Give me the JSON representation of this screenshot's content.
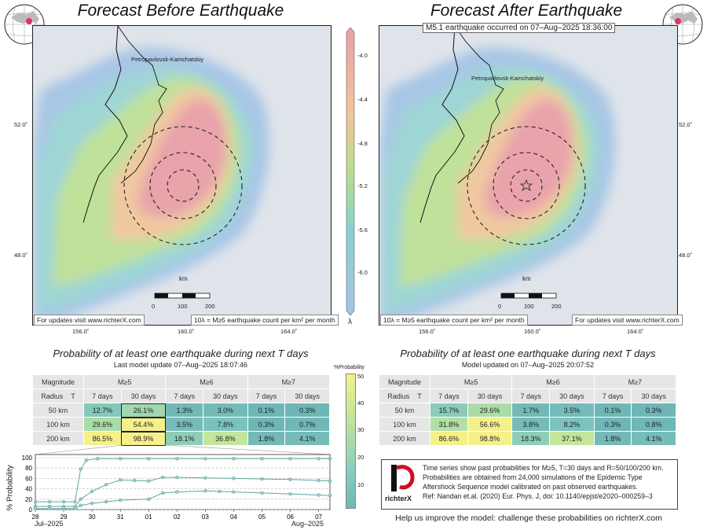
{
  "left": {
    "title": "Forecast Before Earthquake",
    "city": "Petropavlovsk-Kamchatskiy",
    "updates_note": "For updates visit www.richterX.com",
    "legend_note": "10λ = M≥5 earthquake count per km² per month",
    "subtitle": "Probability of at least one earthquake during next T days",
    "update_text": "Last model update 07–Aug–2025 18:07:46"
  },
  "right": {
    "title": "Forecast After Earthquake",
    "event_note": "M5.1 earthquake occurred on 07–Aug–2025 18:36:00",
    "city": "Petropavlovsk-Kamchatskiy",
    "updates_note": "For updates visit www.richterX.com",
    "legend_note": "10λ = M≥5 earthquake count per km² per month",
    "subtitle": "Probability of at least one earthquake during next T days",
    "update_text": "Model updated on 07–Aug–2025 20:07:52"
  },
  "map_axes": {
    "lon_ticks": [
      "156.0˚",
      "160.0˚",
      "164.0˚"
    ],
    "lat_ticks": [
      "52.0˚",
      "48.0˚"
    ],
    "scale_unit": "km",
    "scale_ticks": [
      "0",
      "100",
      "200"
    ]
  },
  "colorbar": {
    "ticks": [
      "-4.0",
      "-4.4",
      "-4.8",
      "-5.2",
      "-5.6",
      "-6.0"
    ],
    "label": "λ",
    "colors": [
      "#e8a0a8",
      "#f2c49a",
      "#b8dd8e",
      "#8ad0cf",
      "#a6c4e6"
    ]
  },
  "prob_colorbar": {
    "label": "%Probability",
    "ticks": [
      "50",
      "40",
      "30",
      "20",
      "10"
    ]
  },
  "table_headers": {
    "magnitude": "Magnitude",
    "radius": "Radius",
    "t": "T",
    "mags": [
      "M≥5",
      "M≥6",
      "M≥7"
    ],
    "periods": [
      "7 days",
      "30 days",
      "7 days",
      "30 days",
      "7 days",
      "30 days"
    ]
  },
  "table_left": {
    "rows": [
      {
        "radius": "50 km",
        "cells": [
          "12.7%",
          "26.1%",
          "1.3%",
          "3.0%",
          "0.1%",
          "0.3%"
        ]
      },
      {
        "radius": "100 km",
        "cells": [
          "29.6%",
          "54.4%",
          "3.5%",
          "7.8%",
          "0.3%",
          "0.7%"
        ]
      },
      {
        "radius": "200 km",
        "cells": [
          "86.5%",
          "98.9%",
          "18.1%",
          "36.8%",
          "1.8%",
          "4.1%"
        ]
      }
    ]
  },
  "table_right": {
    "rows": [
      {
        "radius": "50 km",
        "cells": [
          "15.7%",
          "29.6%",
          "1.7%",
          "3.5%",
          "0.1%",
          "0.3%"
        ]
      },
      {
        "radius": "100 km",
        "cells": [
          "31.8%",
          "56.6%",
          "3.8%",
          "8.2%",
          "0.3%",
          "0.8%"
        ]
      },
      {
        "radius": "200 km",
        "cells": [
          "86.6%",
          "98.8%",
          "18.3%",
          "37.1%",
          "1.8%",
          "4.1%"
        ]
      }
    ]
  },
  "chart_data": {
    "type": "line",
    "ylabel": "% Probability",
    "ylim": [
      0,
      100
    ],
    "yticks": [
      "100",
      "80",
      "60",
      "40",
      "20",
      "0"
    ],
    "xlim": [
      28.0,
      38.4
    ],
    "xticks": [
      {
        "x": 28,
        "label": "28"
      },
      {
        "x": 29,
        "label": "29"
      },
      {
        "x": 30,
        "label": "30"
      },
      {
        "x": 31,
        "label": "31"
      },
      {
        "x": 32,
        "label": "01"
      },
      {
        "x": 33,
        "label": "02"
      },
      {
        "x": 34,
        "label": "03"
      },
      {
        "x": 35,
        "label": "04"
      },
      {
        "x": 36,
        "label": "05"
      },
      {
        "x": 37,
        "label": "06"
      },
      {
        "x": 38,
        "label": "07"
      }
    ],
    "month_labels": [
      "Jul–2025",
      "Aug–2025"
    ],
    "series": [
      {
        "radius": "200 km",
        "points": [
          [
            28,
            15
          ],
          [
            28.5,
            15
          ],
          [
            29,
            15
          ],
          [
            29.4,
            15
          ],
          [
            29.6,
            78
          ],
          [
            29.8,
            95
          ],
          [
            30.2,
            98
          ],
          [
            31,
            98
          ],
          [
            32,
            98
          ],
          [
            33,
            98
          ],
          [
            34,
            98
          ],
          [
            35,
            98
          ],
          [
            36,
            98
          ],
          [
            37,
            98
          ],
          [
            38,
            98
          ],
          [
            38.4,
            98
          ]
        ]
      },
      {
        "radius": "100 km",
        "points": [
          [
            28,
            6
          ],
          [
            28.5,
            6
          ],
          [
            29,
            6
          ],
          [
            29.4,
            6
          ],
          [
            29.6,
            20
          ],
          [
            30,
            35
          ],
          [
            30.5,
            48
          ],
          [
            31,
            57
          ],
          [
            31.5,
            56
          ],
          [
            32,
            55
          ],
          [
            32.5,
            62
          ],
          [
            33,
            62
          ],
          [
            34,
            61
          ],
          [
            35,
            60
          ],
          [
            36,
            59
          ],
          [
            37,
            58
          ],
          [
            38,
            56
          ],
          [
            38.4,
            55
          ]
        ]
      },
      {
        "radius": "50 km",
        "points": [
          [
            28,
            2
          ],
          [
            28.5,
            2
          ],
          [
            29,
            2
          ],
          [
            29.4,
            2
          ],
          [
            29.6,
            8
          ],
          [
            30,
            12
          ],
          [
            30.5,
            15
          ],
          [
            31,
            18
          ],
          [
            32,
            20
          ],
          [
            32.5,
            32
          ],
          [
            33,
            34
          ],
          [
            34,
            36
          ],
          [
            34.5,
            35
          ],
          [
            35,
            34
          ],
          [
            36,
            32
          ],
          [
            37,
            30
          ],
          [
            38,
            28
          ],
          [
            38.4,
            27
          ]
        ]
      }
    ]
  },
  "info_box": {
    "logo_text": "richterX",
    "lines": [
      "Time series show past probabilities for M≥5, T=30 days and R=50/100/200 km.",
      "Probabilities are obtained from 24,000 simulations of the Epidemic Type",
      "Aftershock Sequence model calibrated on past observed earthquakes.",
      "Ref: Nandan et.al. (2020) Eur. Phys. J, doi: 10.1140/epjst/e2020–000259–3"
    ]
  },
  "help_text": "Help us improve the model: challenge these probabilities on richterX.com"
}
